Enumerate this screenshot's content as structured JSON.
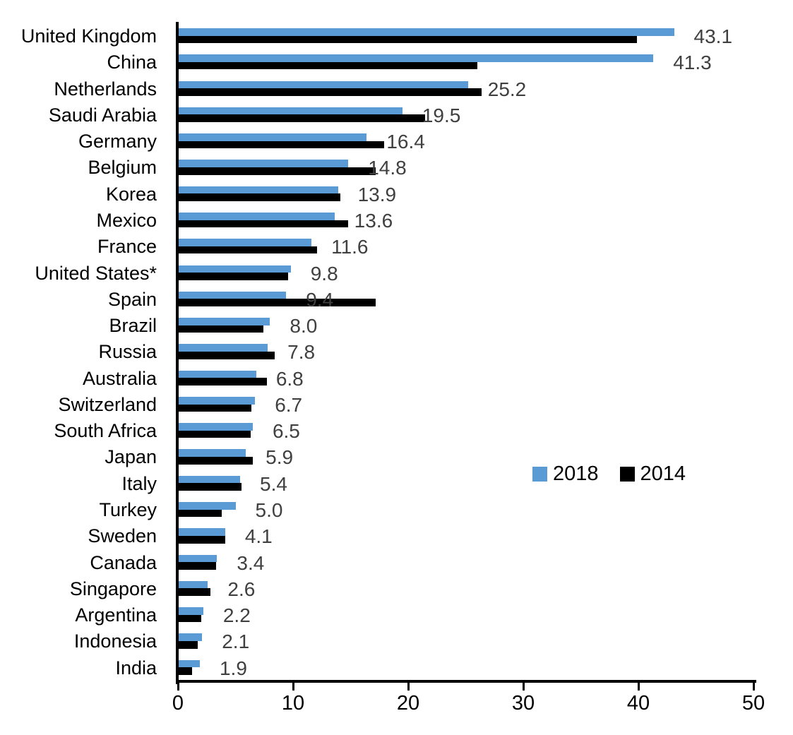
{
  "chart_data": {
    "type": "bar",
    "orientation": "horizontal",
    "title": "",
    "xlabel": "",
    "ylabel": "",
    "categories": [
      "United Kingdom",
      "China",
      "Netherlands",
      "Saudi Arabia",
      "Germany",
      "Belgium",
      "Korea",
      "Mexico",
      "France",
      "United States*",
      "Spain",
      "Brazil",
      "Russia",
      "Australia",
      "Switzerland",
      "South Africa",
      "Japan",
      "Italy",
      "Turkey",
      "Sweden",
      "Canada",
      "Singapore",
      "Argentina",
      "Indonesia",
      "India"
    ],
    "series": [
      {
        "name": "2018",
        "color": "#5B9BD5",
        "values": [
          43.1,
          41.3,
          25.2,
          19.5,
          16.4,
          14.8,
          13.9,
          13.6,
          11.6,
          9.8,
          9.4,
          8.0,
          7.8,
          6.8,
          6.7,
          6.5,
          5.9,
          5.4,
          5.0,
          4.1,
          3.4,
          2.6,
          2.2,
          2.1,
          1.9
        ]
      },
      {
        "name": "2014",
        "color": "#000000",
        "values": [
          39.9,
          26.0,
          26.4,
          21.5,
          17.9,
          17.2,
          14.1,
          14.8,
          12.1,
          9.6,
          17.2,
          7.4,
          8.4,
          7.7,
          6.4,
          6.3,
          6.5,
          5.5,
          3.8,
          4.1,
          3.3,
          2.8,
          2.0,
          1.7,
          1.2
        ]
      }
    ],
    "data_labels_series": "2018",
    "data_labels": [
      "43.1",
      "41.3",
      "25.2",
      "19.5",
      "16.4",
      "14.8",
      "13.9",
      "13.6",
      "11.6",
      "9.8",
      "9.4",
      "8.0",
      "7.8",
      "6.8",
      "6.7",
      "6.5",
      "5.9",
      "5.4",
      "5.0",
      "4.1",
      "3.4",
      "2.6",
      "2.2",
      "2.1",
      "1.9"
    ],
    "x_ticks": [
      "0",
      "10",
      "20",
      "30",
      "40",
      "50"
    ],
    "xlim": [
      0,
      50
    ],
    "grid": false,
    "legend_position": "middle-right"
  },
  "legend": {
    "items": [
      {
        "label": "2018",
        "color": "#5B9BD5"
      },
      {
        "label": "2014",
        "color": "#000000"
      }
    ]
  },
  "colors": {
    "axis": "#000000",
    "category_label": "#000000",
    "tick_label": "#000000",
    "value_label": "#404040",
    "background": "#ffffff"
  }
}
